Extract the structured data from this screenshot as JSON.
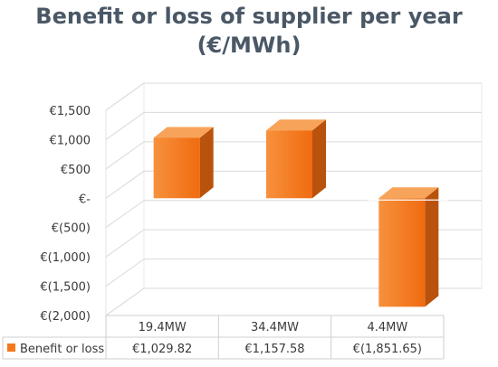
{
  "chart_data": {
    "type": "bar",
    "title_lines": [
      "Benefit or loss of supplier per year",
      "(€/MWh)"
    ],
    "categories": [
      "19.4MW",
      "34.4MW",
      "4.4MW"
    ],
    "series": [
      {
        "name": "Benefit or loss",
        "values": [
          1029.82,
          1157.58,
          -1851.65
        ],
        "labels": [
          "€1,029.82",
          "€1,157.58",
          "€(1,851.65)"
        ]
      }
    ],
    "y_ticks": [
      {
        "value": 1500,
        "label": "€1,500"
      },
      {
        "value": 1000,
        "label": "€1,000"
      },
      {
        "value": 500,
        "label": "€500"
      },
      {
        "value": 0,
        "label": "€-"
      },
      {
        "value": -500,
        "label": "€(500)"
      },
      {
        "value": -1000,
        "label": "€(1,000)"
      },
      {
        "value": -1500,
        "label": "€(1,500)"
      },
      {
        "value": -2000,
        "label": "€(2,000)"
      }
    ],
    "ylim": [
      -2000,
      1500
    ],
    "grid": true,
    "legend_placement": "data-table",
    "style": "3d",
    "colors": {
      "bar_front": "#f4791c",
      "bar_top": "#f8a35a",
      "bar_side": "#b9520c",
      "title": "#4a5866"
    }
  }
}
